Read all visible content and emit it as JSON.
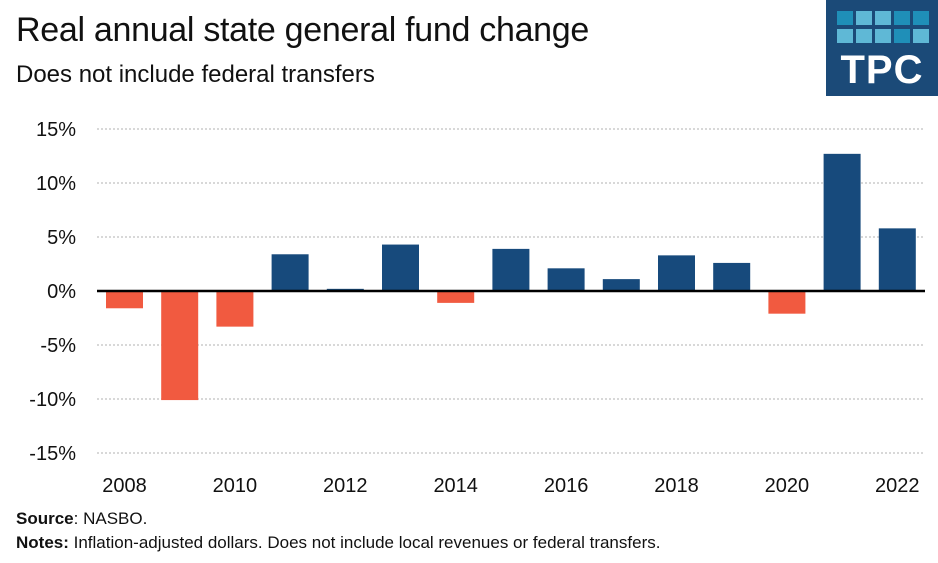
{
  "header": {
    "title": "Real annual state general fund change",
    "subtitle": "Does not include federal transfers"
  },
  "logo": {
    "text": "TPC",
    "background": "#1b4a78",
    "grid": [
      [
        "#1f8fb8",
        "#5fb8d6",
        "#5fb8d6",
        "#1f8fb8",
        "#1f8fb8"
      ],
      [
        "#5fb8d6",
        "#5fb8d6",
        "#5fb8d6",
        "#1f8fb8",
        "#5fb8d6"
      ]
    ]
  },
  "footer": {
    "source_label": "Source",
    "source_text": ": NASBO.",
    "notes_label": "Notes:",
    "notes_text": " Inflation-adjusted dollars. Does not include local revenues or federal transfers."
  },
  "chart_data": {
    "type": "bar",
    "title": "Real annual state general fund change",
    "subtitle": "Does not include federal transfers",
    "xlabel": "",
    "ylabel": "",
    "categories": [
      "2008",
      "2009",
      "2010",
      "2011",
      "2012",
      "2013",
      "2014",
      "2015",
      "2016",
      "2017",
      "2018",
      "2019",
      "2020",
      "2021",
      "2022"
    ],
    "values": [
      -1.6,
      -10.1,
      -3.3,
      3.4,
      0.2,
      4.3,
      -1.1,
      3.9,
      2.1,
      1.1,
      3.3,
      2.6,
      -2.1,
      12.7,
      5.8
    ],
    "x_tick_labels": [
      "2008",
      "2010",
      "2012",
      "2014",
      "2016",
      "2018",
      "2020",
      "2022"
    ],
    "y_ticks": [
      15,
      10,
      5,
      0,
      -5,
      -10,
      -15
    ],
    "y_tick_labels": [
      "15%",
      "10%",
      "5%",
      "0%",
      "-5%",
      "-10%",
      "-15%"
    ],
    "ylim": [
      -15,
      15
    ],
    "grid": true,
    "legend": "none",
    "colors": {
      "positive": "#174a7c",
      "negative": "#f15a40",
      "grid": "#cccccc",
      "axis": "#000000"
    }
  }
}
